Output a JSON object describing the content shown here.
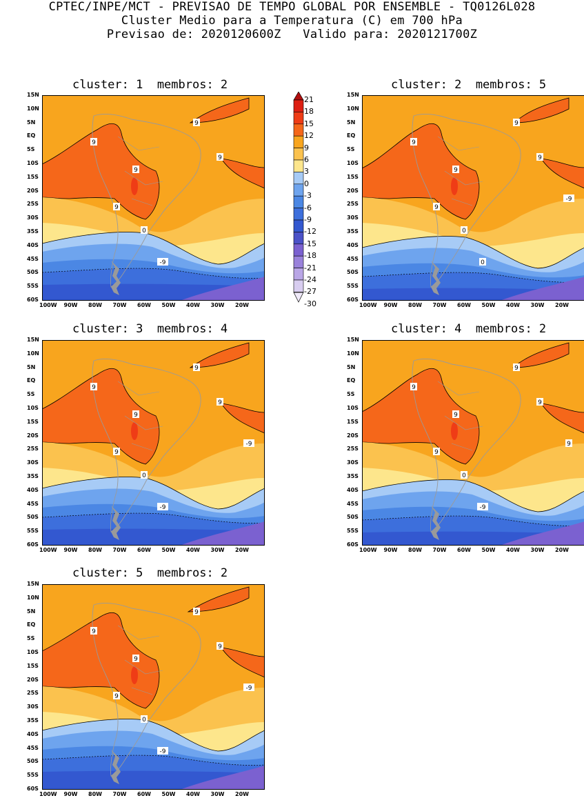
{
  "header": {
    "line1": "CPTEC/INPE/MCT - PREVISAO DE TEMPO GLOBAL POR ENSEMBLE - TQ0126L028",
    "line2": "Cluster Medio para a Temperatura (C) em 700 hPa",
    "line3": "Previsao de: 2020120600Z   Valido para: 2020121700Z"
  },
  "colors": {
    "c_m30": "#efe9f8",
    "c_m27": "#d8cdf0",
    "c_m24": "#b9a6e6",
    "c_m21": "#9a82db",
    "c_m18": "#7b61d0",
    "c_m15": "#4b52c8",
    "c_m12": "#3358d0",
    "c_m9": "#3d6fdc",
    "c_m6": "#4b87e4",
    "c_m3": "#6ea4ee",
    "c_0": "#a7cbf6",
    "c_3": "#fde68c",
    "c_6": "#fbc24e",
    "c_9": "#f8a51e",
    "c_12": "#f5671a",
    "c_15": "#ef3c16",
    "c_18": "#dd1f12",
    "c_21": "#b10e0e",
    "border": "#9a9a9a",
    "land_patagonia": "#9a9a9a"
  },
  "legend": {
    "labels": [
      "21",
      "18",
      "15",
      "12",
      "9",
      "6",
      "3",
      "0",
      "-3",
      "-6",
      "-9",
      "-12",
      "-15",
      "-18",
      "-21",
      "-24",
      "-27",
      "-30"
    ]
  },
  "axes": {
    "lat_labels": [
      "15N",
      "10N",
      "5N",
      "EQ",
      "5S",
      "10S",
      "15S",
      "20S",
      "25S",
      "30S",
      "35S",
      "40S",
      "45S",
      "50S",
      "55S",
      "60S"
    ],
    "lon_labels": [
      "100W",
      "90W",
      "80W",
      "70W",
      "60W",
      "50W",
      "40W",
      "30W",
      "20W"
    ]
  },
  "panels": [
    {
      "title": "cluster: 1  membros: 2",
      "labels": [
        "9",
        "9",
        "9",
        "9",
        "9",
        "0",
        "-9"
      ]
    },
    {
      "title": "cluster: 2  membros: 5",
      "labels": [
        "9",
        "9",
        "9",
        "9",
        "9",
        "0",
        "0",
        "-9"
      ]
    },
    {
      "title": "cluster: 3  membros: 4",
      "labels": [
        "9",
        "9",
        "9",
        "9",
        "9",
        "0",
        "-9",
        "-9"
      ]
    },
    {
      "title": "cluster: 4  membros: 2",
      "labels": [
        "9",
        "9",
        "9",
        "9",
        "9",
        "0",
        "-9",
        "9"
      ]
    },
    {
      "title": "cluster: 5  membros: 2",
      "labels": [
        "9",
        "9",
        "9",
        "9",
        "9",
        "0",
        "-9",
        "-9"
      ]
    }
  ]
}
